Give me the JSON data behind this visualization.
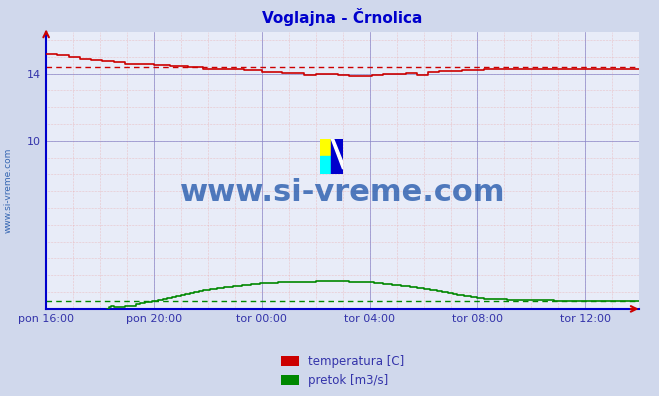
{
  "title": "Voglajna - Črnolica",
  "title_color": "#0000cc",
  "bg_color": "#d0d8ec",
  "plot_bg_color": "#e8ecf8",
  "x_tick_labels": [
    "pon 16:00",
    "pon 20:00",
    "tor 00:00",
    "tor 04:00",
    "tor 08:00",
    "tor 12:00"
  ],
  "x_tick_positions": [
    0,
    48,
    96,
    144,
    192,
    240
  ],
  "y_ticks": [
    14,
    10
  ],
  "ylim": [
    0,
    16.5
  ],
  "xlim": [
    0,
    264
  ],
  "temp_color": "#cc0000",
  "flow_color": "#008800",
  "temp_avg": 14.4,
  "flow_avg": 0.45,
  "watermark": "www.si-vreme.com",
  "watermark_color": "#1a52a8",
  "legend_labels": [
    "temperatura [C]",
    "pretok [m3/s]"
  ],
  "legend_colors": [
    "#cc0000",
    "#008800"
  ],
  "left_label": "www.si-vreme.com",
  "n_points": 265
}
